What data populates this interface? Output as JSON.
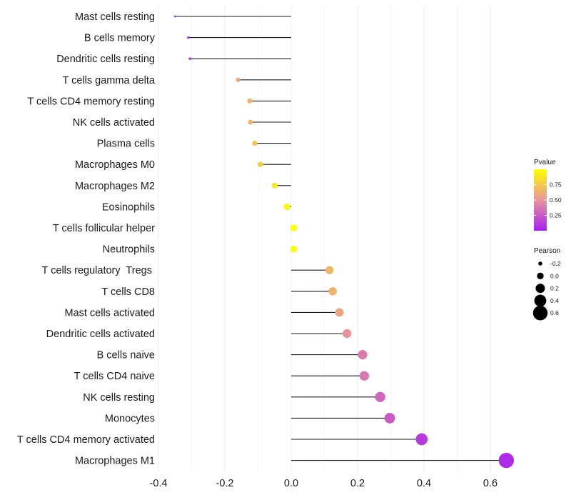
{
  "chart_data": {
    "type": "lollipop",
    "x_axis": {
      "ticks": [
        -0.4,
        -0.2,
        0.0,
        0.2,
        0.4,
        0.6
      ],
      "tick_labels": [
        "-0.4",
        "-0.2",
        "0.0",
        "0.2",
        "0.4",
        "0.6"
      ],
      "range": [
        -0.42,
        0.68
      ]
    },
    "baseline": 0.0,
    "categories": [
      "Mast cells resting",
      "B cells memory",
      "Dendritic cells resting",
      "T cells gamma delta",
      "T cells CD4 memory resting",
      "NK cells activated",
      "Plasma cells",
      "Macrophages M0",
      "Macrophages M2",
      "Eosinophils",
      "T cells follicular helper",
      "Neutrophils",
      "T cells regulatory  Tregs ",
      "T cells CD8",
      "Mast cells activated",
      "Dendritic cells activated",
      "B cells naive",
      "T cells CD4 naive",
      "NK cells resting",
      "Monocytes",
      "T cells CD4 memory activated",
      "Macrophages M1"
    ],
    "pearson": [
      -0.35,
      -0.31,
      -0.305,
      -0.16,
      -0.125,
      -0.123,
      -0.11,
      -0.093,
      -0.05,
      -0.013,
      0.007,
      0.007,
      0.115,
      0.125,
      0.145,
      0.168,
      0.215,
      0.22,
      0.268,
      0.297,
      0.393,
      0.648
    ],
    "pvalue": [
      0.05,
      0.1,
      0.1,
      0.6,
      0.65,
      0.65,
      0.72,
      0.78,
      0.88,
      0.97,
      0.99,
      0.99,
      0.66,
      0.64,
      0.58,
      0.5,
      0.4,
      0.38,
      0.3,
      0.26,
      0.12,
      0.05
    ],
    "legend_pvalue": {
      "title": "Pvalue",
      "ticks": [
        0.25,
        0.5,
        0.75
      ],
      "tick_labels": [
        "0.25",
        "0.50",
        "0.75"
      ],
      "range": [
        0.0,
        1.0
      ],
      "color_low": "#a61ff2",
      "color_mid": "#e8959a",
      "color_high": "#ffff00"
    },
    "legend_pearson": {
      "title": "Pearson",
      "values": [
        -0.2,
        0.0,
        0.2,
        0.4,
        0.6
      ],
      "labels": [
        "-0.2",
        "0.0",
        "0.2",
        "0.4",
        "0.6"
      ]
    }
  }
}
